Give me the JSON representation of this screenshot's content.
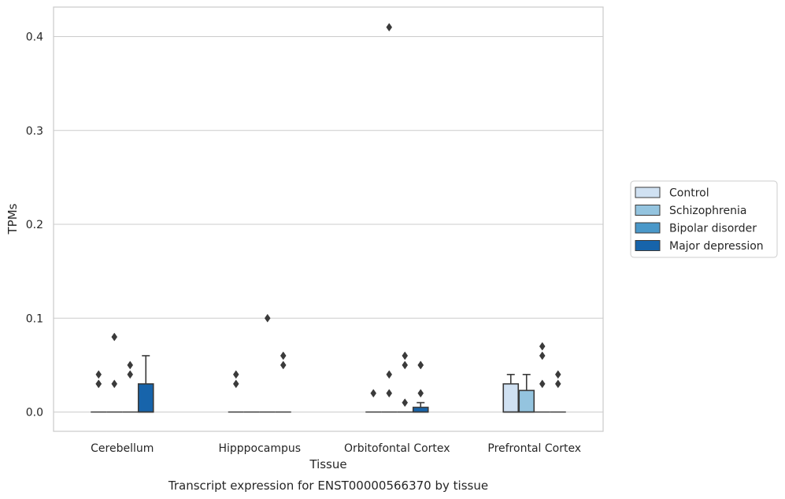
{
  "caption": "Transcript expression for ENST00000566370 by tissue",
  "chart_data": {
    "type": "box",
    "xlabel": "Tissue",
    "ylabel": "TPMs",
    "ylim": [
      -0.02,
      0.43
    ],
    "yticks": [
      0.0,
      0.1,
      0.2,
      0.3,
      0.4
    ],
    "ytick_labels": [
      "0.0",
      "0.1",
      "0.2",
      "0.3",
      "0.4"
    ],
    "grid": "horizontal",
    "legend_position": "right",
    "categories": [
      "Cerebellum",
      "Hipppocampus",
      "Orbitofontal Cortex",
      "Prefrontal Cortex"
    ],
    "series": [
      {
        "name": "Control",
        "color": "#d0e1f2",
        "boxes": [
          {
            "q1": 0.0,
            "median": 0.0,
            "q3": 0.0,
            "whislo": 0.0,
            "whishi": 0.0,
            "fliers": [
              0.03,
              0.04,
              0.03
            ]
          },
          {
            "q1": 0.0,
            "median": 0.0,
            "q3": 0.0,
            "whislo": 0.0,
            "whishi": 0.0,
            "fliers": [
              0.03,
              0.04
            ]
          },
          {
            "q1": 0.0,
            "median": 0.0,
            "q3": 0.0,
            "whislo": 0.0,
            "whishi": 0.0,
            "fliers": [
              0.02
            ]
          },
          {
            "q1": 0.0,
            "median": 0.0,
            "q3": 0.03,
            "whislo": 0.0,
            "whishi": 0.04,
            "fliers": []
          }
        ]
      },
      {
        "name": "Schizophrenia",
        "color": "#94c4df",
        "boxes": [
          {
            "q1": 0.0,
            "median": 0.0,
            "q3": 0.0,
            "whislo": 0.0,
            "whishi": 0.0,
            "fliers": [
              0.08,
              0.03
            ]
          },
          {
            "q1": 0.0,
            "median": 0.0,
            "q3": 0.0,
            "whislo": 0.0,
            "whishi": 0.0,
            "fliers": []
          },
          {
            "q1": 0.0,
            "median": 0.0,
            "q3": 0.0,
            "whislo": 0.0,
            "whishi": 0.0,
            "fliers": [
              0.02,
              0.04,
              0.41
            ]
          },
          {
            "q1": 0.0,
            "median": 0.0,
            "q3": 0.023,
            "whislo": 0.0,
            "whishi": 0.04,
            "fliers": []
          }
        ]
      },
      {
        "name": "Bipolar disorder",
        "color": "#4a98c9",
        "boxes": [
          {
            "q1": 0.0,
            "median": 0.0,
            "q3": 0.0,
            "whislo": 0.0,
            "whishi": 0.0,
            "fliers": [
              0.04,
              0.05
            ]
          },
          {
            "q1": 0.0,
            "median": 0.0,
            "q3": 0.0,
            "whislo": 0.0,
            "whishi": 0.0,
            "fliers": [
              0.1
            ]
          },
          {
            "q1": 0.0,
            "median": 0.0,
            "q3": 0.0,
            "whislo": 0.0,
            "whishi": 0.0,
            "fliers": [
              0.01,
              0.05,
              0.06
            ]
          },
          {
            "q1": 0.0,
            "median": 0.0,
            "q3": 0.0,
            "whislo": 0.0,
            "whishi": 0.0,
            "fliers": [
              0.03,
              0.06,
              0.07
            ]
          }
        ]
      },
      {
        "name": "Major depression",
        "color": "#1764ab",
        "boxes": [
          {
            "q1": 0.0,
            "median": 0.0,
            "q3": 0.03,
            "whislo": 0.0,
            "whishi": 0.06,
            "fliers": []
          },
          {
            "q1": 0.0,
            "median": 0.0,
            "q3": 0.0,
            "whislo": 0.0,
            "whishi": 0.0,
            "fliers": [
              0.05,
              0.06
            ]
          },
          {
            "q1": 0.0,
            "median": 0.0,
            "q3": 0.005,
            "whislo": 0.0,
            "whishi": 0.01,
            "fliers": [
              0.02,
              0.05,
              0.05
            ]
          },
          {
            "q1": 0.0,
            "median": 0.0,
            "q3": 0.0,
            "whislo": 0.0,
            "whishi": 0.0,
            "fliers": [
              0.03,
              0.04
            ]
          }
        ]
      }
    ]
  }
}
